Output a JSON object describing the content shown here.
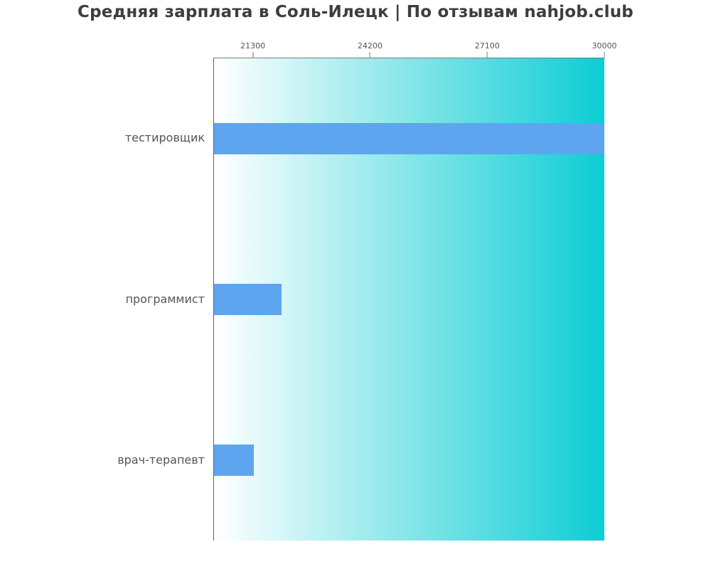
{
  "title": {
    "text": "Средняя зарплата в Соль-Илецк | По отзывам nahjob.club",
    "color": "#3d3d3d"
  },
  "chart_data": {
    "type": "bar",
    "orientation": "horizontal",
    "title": "Средняя зарплата в Соль-Илецк | По отзывам nahjob.club",
    "categories": [
      "тестировщик",
      "программист",
      "врач-терапевт"
    ],
    "values": [
      30000,
      22000,
      21300
    ],
    "xlabel": "",
    "ylabel": "",
    "xlim": [
      20320,
      30000
    ],
    "x_ticks": [
      21300,
      24200,
      27100,
      30000
    ],
    "tick_side": "top",
    "grid": false,
    "legend": false,
    "bar_color": "#5ea5ef",
    "plot_bg_gradient_left": "#ffffff",
    "plot_bg_gradient_right": "#0dcdd4",
    "axis_color": "#7a7a7a",
    "tick_label_color": "#555555",
    "category_label_color": "#555555"
  }
}
